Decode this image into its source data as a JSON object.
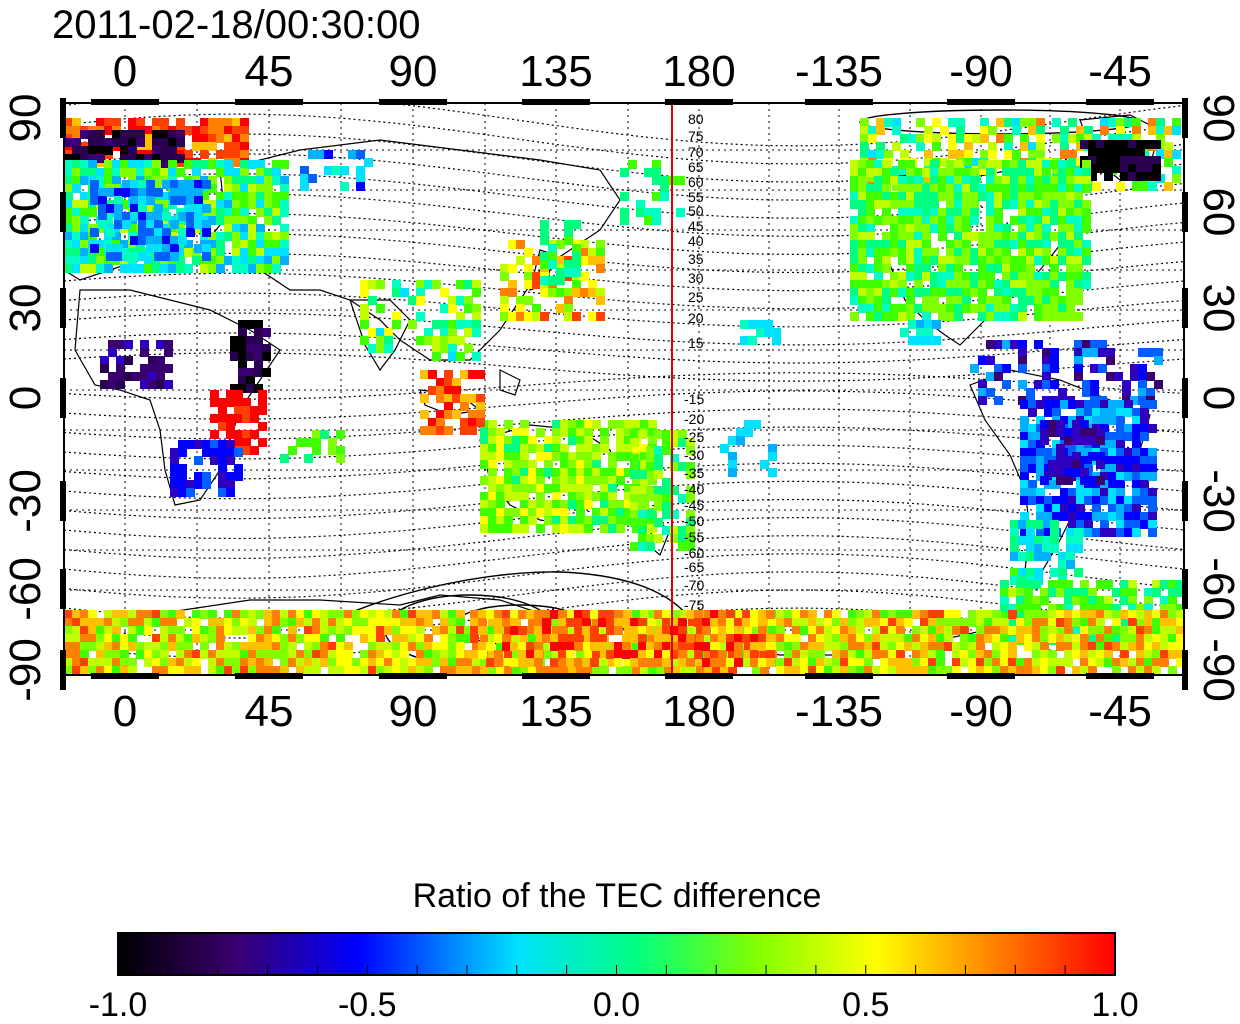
{
  "title": "2011-02-18/00:30:00",
  "map": {
    "x_ticks": [
      "0",
      "45",
      "90",
      "135",
      "180",
      "-135",
      "-90",
      "-45"
    ],
    "y_ticks": [
      "90",
      "60",
      "30",
      "0",
      "-30",
      "-60",
      "-90"
    ],
    "contour_labels_north": [
      "80",
      "75",
      "70",
      "65",
      "60",
      "55",
      "50",
      "45",
      "40",
      "35",
      "30",
      "25",
      "20",
      "15"
    ],
    "contour_labels_south": [
      "-15",
      "-20",
      "-25",
      "-30",
      "-35",
      "-40",
      "-45",
      "-50",
      "-55",
      "-60",
      "-65",
      "-70",
      "-75"
    ],
    "marker_line_color": "#e00000"
  },
  "colorbar": {
    "title": "Ratio of the TEC difference",
    "ticks": [
      "-1.0",
      "-0.5",
      "0.0",
      "0.5",
      "1.0"
    ],
    "range": [
      -1.0,
      1.0
    ],
    "stops": [
      "#000000",
      "#3a0070",
      "#0000ff",
      "#00c8ff",
      "#00ff80",
      "#80ff00",
      "#ffff00",
      "#ff8000",
      "#ff0000"
    ]
  }
}
